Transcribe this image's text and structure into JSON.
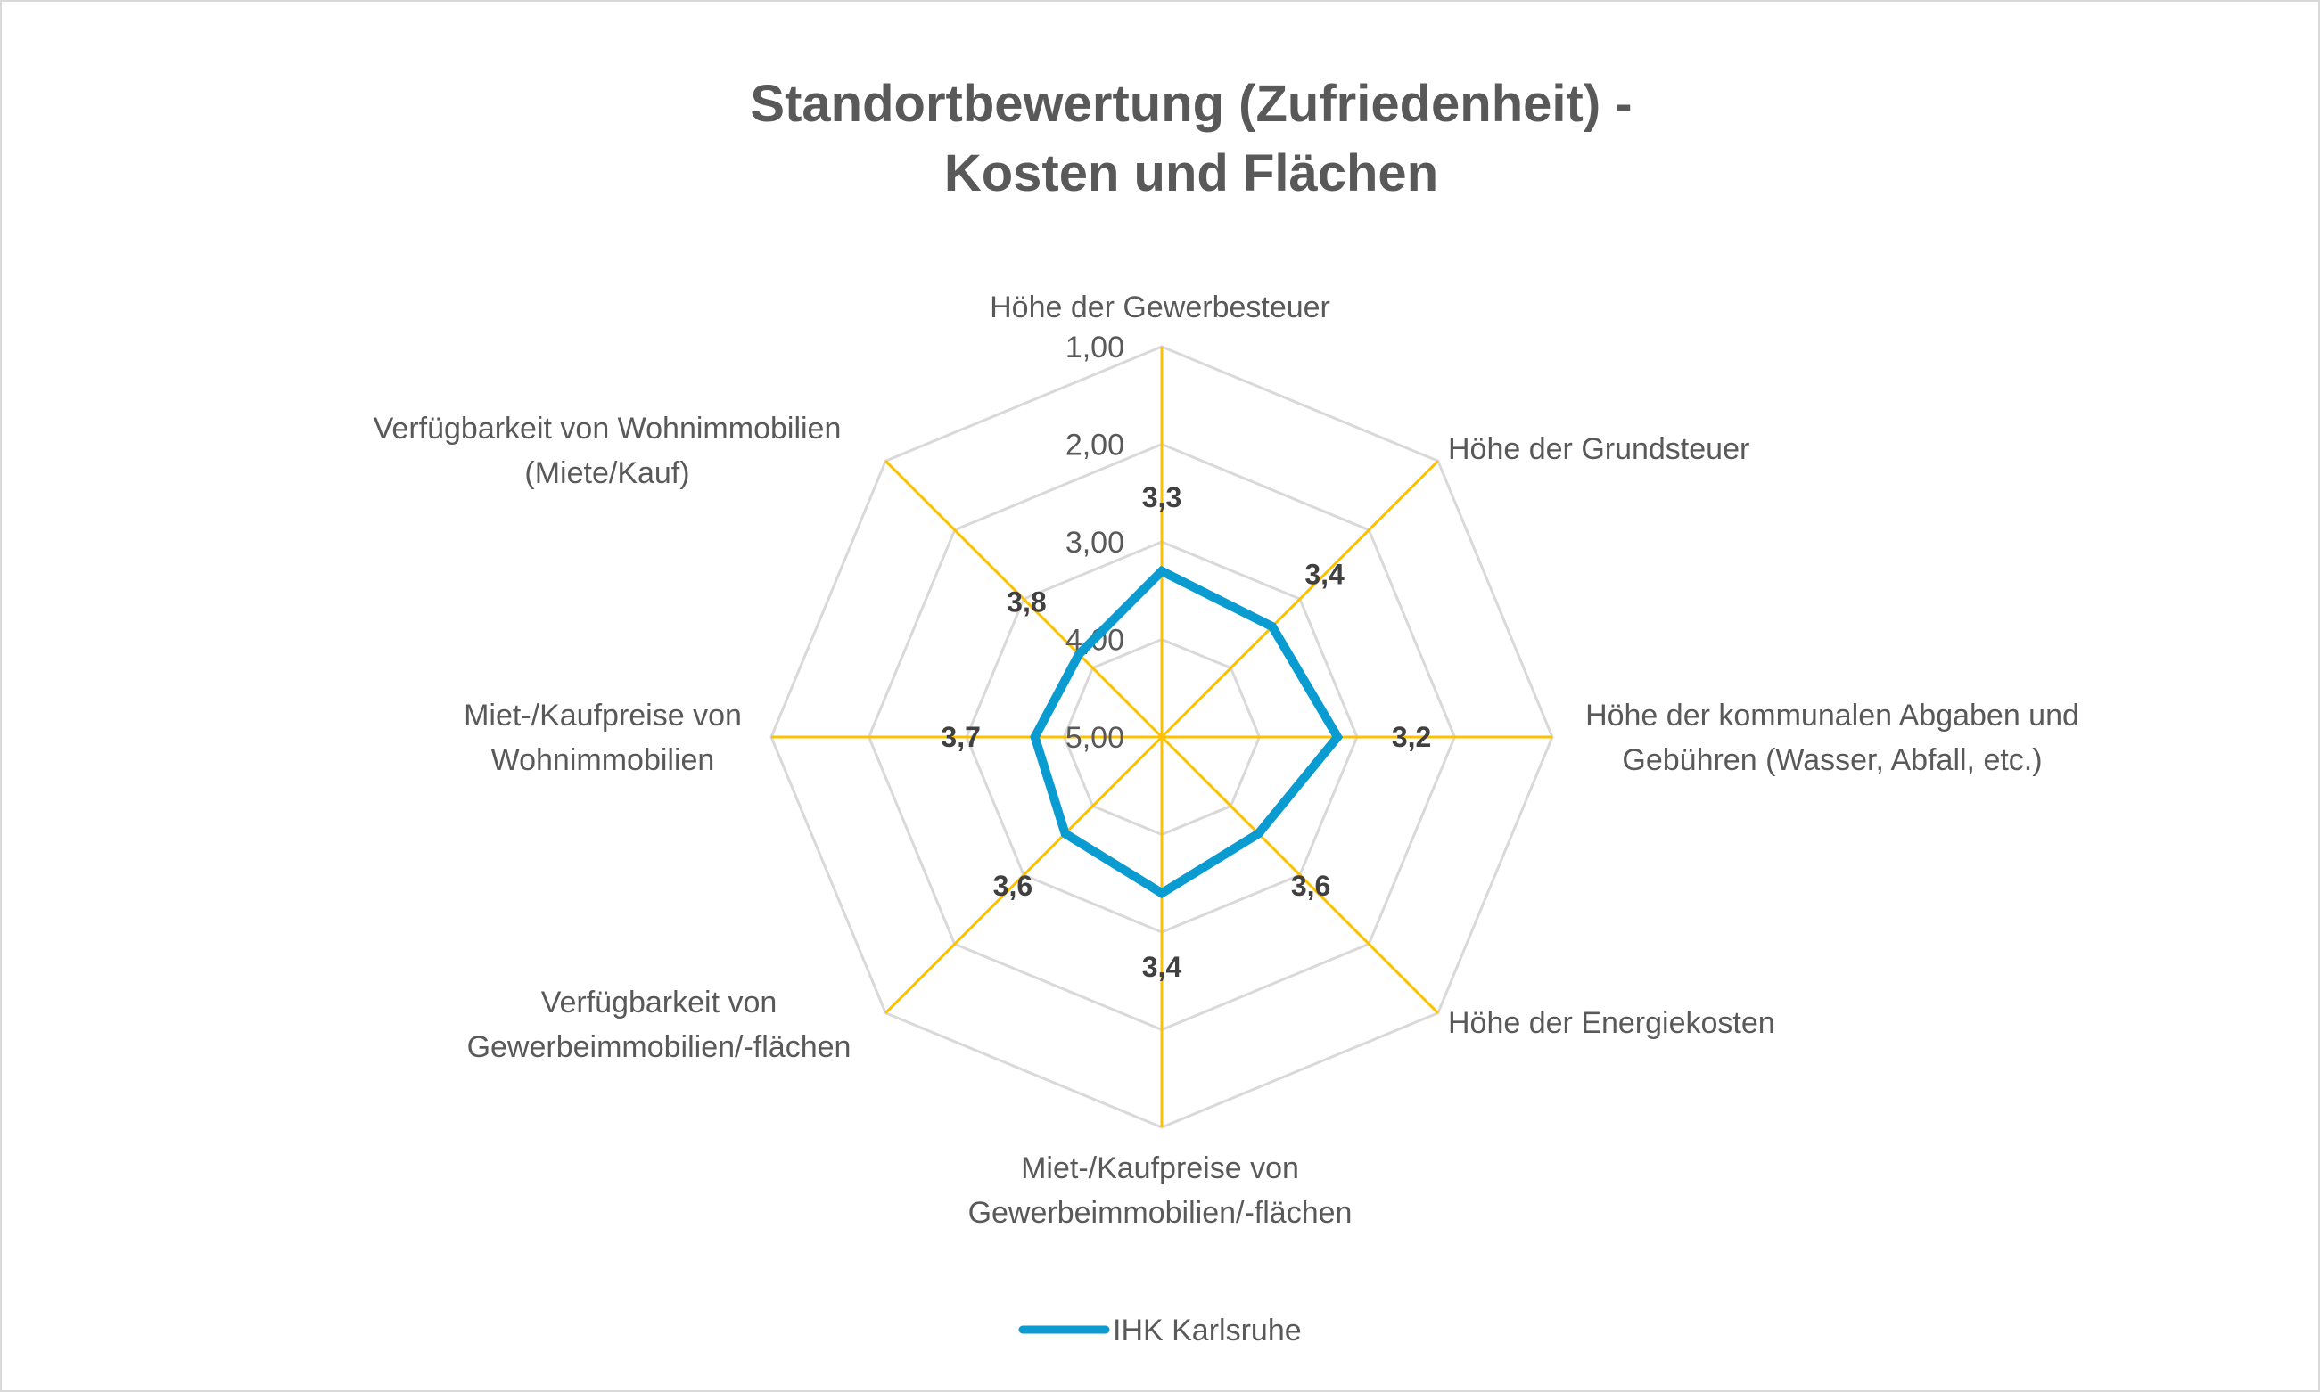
{
  "chart_data": {
    "type": "radar",
    "title_lines": [
      "Standortbewertung (Zufriedenheit) -",
      "Kosten und Flächen"
    ],
    "categories": [
      [
        "Höhe der Gewerbesteuer"
      ],
      [
        "Höhe der Grundsteuer"
      ],
      [
        "Höhe der kommunalen Abgaben und",
        "Gebühren (Wasser, Abfall, etc.)"
      ],
      [
        "Höhe der Energiekosten"
      ],
      [
        "Miet-/Kaufpreise von",
        "Gewerbeimmobilien/-flächen"
      ],
      [
        "Verfügbarkeit von",
        "Gewerbeimmobilien/-flächen"
      ],
      [
        "Miet-/Kaufpreise von",
        "Wohnimmobilien"
      ],
      [
        "Verfügbarkeit von Wohnimmobilien",
        "(Miete/Kauf)"
      ]
    ],
    "series": [
      {
        "name": "IHK Karlsruhe",
        "values": [
          3.3,
          3.4,
          3.2,
          3.6,
          3.4,
          3.6,
          3.7,
          3.8
        ],
        "labels": [
          "3,3",
          "3,4",
          "3,2",
          "3,6",
          "3,4",
          "3,6",
          "3,7",
          "3,8"
        ],
        "color": "#0A9BD0"
      }
    ],
    "axis_range": [
      5,
      1
    ],
    "axis_reversed": true,
    "tick_labels": [
      "1,00",
      "2,00",
      "3,00",
      "4,00",
      "5,00"
    ],
    "tick_values": [
      1,
      2,
      3,
      4,
      5
    ],
    "grid": true,
    "legend_position": "bottom",
    "colors": {
      "spokes": "#FFC000",
      "grid": "#D9D9D9",
      "text": "#595959"
    }
  }
}
